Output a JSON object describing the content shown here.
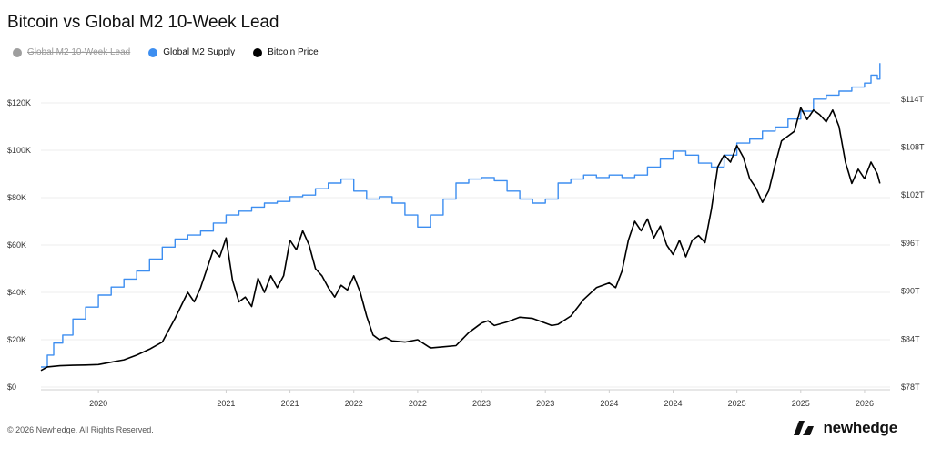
{
  "title": "Bitcoin vs Global M2 10-Week Lead",
  "legend": [
    {
      "label": "Global M2 10-Week Lead",
      "color": "#9e9e9e",
      "disabled": true
    },
    {
      "label": "Global M2 Supply",
      "color": "#3d8ef0",
      "disabled": false
    },
    {
      "label": "Bitcoin Price",
      "color": "#000000",
      "disabled": false
    }
  ],
  "footer": "© 2026 Newhedge. All Rights Reserved.",
  "brand": "newhedge",
  "chart_data": {
    "type": "line",
    "x_tick_labels": [
      "2020",
      "2021",
      "2021",
      "2022",
      "2022",
      "2023",
      "2023",
      "2024",
      "2024",
      "2025",
      "2025",
      "2026"
    ],
    "x_tick_values": [
      2020.0,
      2021.0,
      2021.5,
      2022.0,
      2022.5,
      2023.0,
      2023.5,
      2024.0,
      2024.5,
      2025.0,
      2025.5,
      2026.0
    ],
    "xlim": [
      2019.55,
      2026.2
    ],
    "y_left": {
      "ticks": [
        0,
        20000,
        40000,
        60000,
        80000,
        100000,
        120000
      ],
      "labels": [
        "$0",
        "$20K",
        "$40K",
        "$60K",
        "$80K",
        "$100K",
        "$120K"
      ],
      "range": [
        0,
        125000
      ]
    },
    "y_right": {
      "ticks": [
        78,
        84,
        90,
        96,
        102,
        108,
        114
      ],
      "labels": [
        "$78T",
        "$84T",
        "$90T",
        "$96T",
        "$102T",
        "$108T",
        "$114T"
      ],
      "range": [
        78,
        115
      ]
    },
    "grid": true,
    "series": [
      {
        "name": "Global M2 Supply",
        "axis": "right",
        "color": "#3d8ef0",
        "step": true,
        "x": [
          2019.55,
          2019.6,
          2019.65,
          2019.72,
          2019.8,
          2019.9,
          2020.0,
          2020.1,
          2020.2,
          2020.3,
          2020.4,
          2020.5,
          2020.6,
          2020.7,
          2020.8,
          2020.9,
          2021.0,
          2021.1,
          2021.2,
          2021.3,
          2021.4,
          2021.5,
          2021.6,
          2021.7,
          2021.8,
          2021.9,
          2022.0,
          2022.1,
          2022.2,
          2022.3,
          2022.4,
          2022.5,
          2022.6,
          2022.7,
          2022.8,
          2022.9,
          2023.0,
          2023.1,
          2023.2,
          2023.3,
          2023.4,
          2023.5,
          2023.6,
          2023.7,
          2023.8,
          2023.9,
          2024.0,
          2024.1,
          2024.2,
          2024.3,
          2024.4,
          2024.5,
          2024.6,
          2024.7,
          2024.8,
          2024.9,
          2025.0,
          2025.1,
          2025.2,
          2025.3,
          2025.4,
          2025.5,
          2025.6,
          2025.7,
          2025.8,
          2025.9,
          2026.0,
          2026.05,
          2026.1,
          2026.12
        ],
        "values": [
          80.5,
          82.0,
          83.5,
          84.5,
          86.5,
          88.0,
          89.5,
          90.5,
          91.5,
          92.5,
          94.0,
          95.5,
          96.5,
          97.0,
          97.5,
          98.5,
          99.5,
          100.0,
          100.5,
          101.0,
          101.2,
          101.8,
          102.0,
          102.8,
          103.5,
          104.0,
          102.5,
          101.5,
          101.8,
          101.0,
          99.5,
          98.0,
          99.5,
          101.5,
          103.5,
          104.0,
          104.2,
          103.8,
          102.5,
          101.5,
          101.0,
          101.5,
          103.5,
          104.0,
          104.5,
          104.2,
          104.5,
          104.2,
          104.5,
          105.5,
          106.5,
          107.5,
          107.0,
          106.0,
          105.5,
          107.0,
          108.5,
          109.0,
          110.0,
          110.5,
          111.5,
          112.5,
          114.0,
          114.5,
          115.0,
          115.5,
          116.0,
          117.0,
          116.5,
          118.5
        ]
      },
      {
        "name": "Bitcoin Price",
        "axis": "left",
        "color": "#000000",
        "step": false,
        "x": [
          2019.55,
          2019.6,
          2019.7,
          2019.8,
          2019.9,
          2020.0,
          2020.1,
          2020.15,
          2020.2,
          2020.3,
          2020.4,
          2020.5,
          2020.6,
          2020.7,
          2020.75,
          2020.8,
          2020.85,
          2020.9,
          2020.95,
          2021.0,
          2021.05,
          2021.1,
          2021.15,
          2021.2,
          2021.25,
          2021.3,
          2021.35,
          2021.4,
          2021.45,
          2021.5,
          2021.55,
          2021.6,
          2021.65,
          2021.7,
          2021.75,
          2021.8,
          2021.85,
          2021.9,
          2021.95,
          2022.0,
          2022.05,
          2022.1,
          2022.15,
          2022.2,
          2022.25,
          2022.3,
          2022.4,
          2022.5,
          2022.6,
          2022.7,
          2022.8,
          2022.9,
          2023.0,
          2023.05,
          2023.1,
          2023.2,
          2023.3,
          2023.4,
          2023.5,
          2023.55,
          2023.6,
          2023.7,
          2023.8,
          2023.9,
          2024.0,
          2024.05,
          2024.1,
          2024.15,
          2024.2,
          2024.25,
          2024.3,
          2024.35,
          2024.4,
          2024.45,
          2024.5,
          2024.55,
          2024.6,
          2024.65,
          2024.7,
          2024.75,
          2024.8,
          2024.85,
          2024.9,
          2024.95,
          2025.0,
          2025.05,
          2025.1,
          2025.15,
          2025.2,
          2025.25,
          2025.3,
          2025.35,
          2025.4,
          2025.45,
          2025.5,
          2025.55,
          2025.6,
          2025.65,
          2025.7,
          2025.75,
          2025.8,
          2025.85,
          2025.9,
          2025.95,
          2026.0,
          2026.05,
          2026.1,
          2026.12
        ],
        "values": [
          7000,
          8500,
          9000,
          9200,
          9300,
          9500,
          10500,
          11000,
          11500,
          13500,
          16000,
          19000,
          29000,
          40000,
          36000,
          42000,
          50000,
          58000,
          55000,
          63000,
          45000,
          36000,
          38000,
          34000,
          46000,
          40000,
          47000,
          42000,
          47000,
          62000,
          58000,
          66000,
          60000,
          50000,
          47000,
          42000,
          38000,
          43000,
          41000,
          47000,
          40000,
          30000,
          22000,
          20000,
          21000,
          19500,
          19000,
          20000,
          16500,
          17000,
          17500,
          23000,
          27000,
          28000,
          26000,
          27500,
          29500,
          29000,
          27000,
          26000,
          26500,
          30000,
          37000,
          42000,
          44000,
          42000,
          49000,
          62000,
          70000,
          66000,
          71000,
          63000,
          68000,
          60000,
          56000,
          62000,
          55000,
          62000,
          64000,
          61000,
          75000,
          93000,
          98000,
          95000,
          102000,
          97000,
          88000,
          84000,
          78000,
          83000,
          94000,
          104000,
          106000,
          108000,
          118000,
          113000,
          117000,
          115000,
          112000,
          117000,
          110000,
          95000,
          86000,
          92000,
          88000,
          95000,
          90000,
          86000
        ]
      }
    ]
  }
}
